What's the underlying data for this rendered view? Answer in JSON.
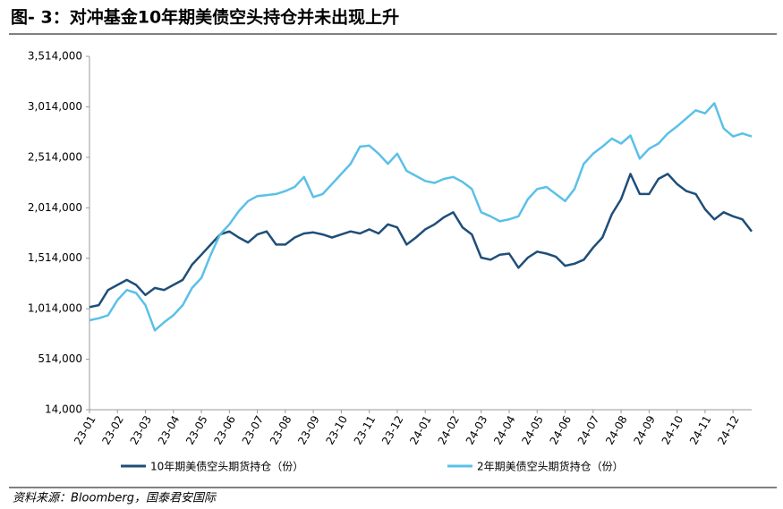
{
  "chart_data": {
    "type": "line",
    "title": "图- 3：对冲基金10年期美债空头持仓并未出现上升",
    "source": "资料来源：Bloomberg，国泰君安国际",
    "categories": [
      "23-01",
      null,
      null,
      "23-02",
      null,
      null,
      "23-03",
      null,
      null,
      "23-04",
      null,
      null,
      "23-05",
      null,
      null,
      "23-06",
      null,
      null,
      "23-07",
      null,
      null,
      "23-08",
      null,
      null,
      "23-09",
      null,
      null,
      "23-10",
      null,
      null,
      "23-11",
      null,
      null,
      "23-12",
      null,
      null,
      "24-01",
      null,
      null,
      "24-02",
      null,
      null,
      "24-03",
      null,
      null,
      "24-04",
      null,
      null,
      "24-05",
      null,
      null,
      "24-06",
      null,
      null,
      "24-07",
      null,
      null,
      "24-08",
      null,
      null,
      "24-09",
      null,
      null,
      "24-10",
      null,
      null,
      "24-11",
      null,
      null,
      "24-12",
      null,
      null
    ],
    "series": [
      {
        "name": "10年期美债空头期货持仓（份）",
        "color": "#1f4e79",
        "values": [
          1030000,
          1050000,
          1200000,
          1250000,
          1300000,
          1250000,
          1150000,
          1220000,
          1200000,
          1250000,
          1300000,
          1450000,
          1550000,
          1650000,
          1750000,
          1780000,
          1720000,
          1670000,
          1750000,
          1780000,
          1650000,
          1650000,
          1720000,
          1760000,
          1770000,
          1750000,
          1720000,
          1750000,
          1780000,
          1760000,
          1800000,
          1760000,
          1850000,
          1820000,
          1650000,
          1720000,
          1800000,
          1850000,
          1920000,
          1970000,
          1820000,
          1750000,
          1520000,
          1500000,
          1550000,
          1560000,
          1420000,
          1520000,
          1580000,
          1560000,
          1530000,
          1440000,
          1460000,
          1500000,
          1620000,
          1720000,
          1950000,
          2100000,
          2350000,
          2150000,
          2150000,
          2300000,
          2350000,
          2250000,
          2180000,
          2150000,
          2000000,
          1900000,
          1970000,
          1930000,
          1900000,
          1780000
        ]
      },
      {
        "name": "2年期美债空头期货持仓（份）",
        "color": "#5bc0e8",
        "values": [
          900000,
          920000,
          950000,
          1100000,
          1200000,
          1170000,
          1050000,
          800000,
          880000,
          950000,
          1050000,
          1220000,
          1320000,
          1550000,
          1750000,
          1850000,
          1980000,
          2080000,
          2130000,
          2140000,
          2150000,
          2180000,
          2220000,
          2320000,
          2120000,
          2150000,
          2250000,
          2350000,
          2450000,
          2620000,
          2630000,
          2550000,
          2450000,
          2550000,
          2380000,
          2330000,
          2280000,
          2260000,
          2300000,
          2320000,
          2270000,
          2200000,
          1970000,
          1930000,
          1880000,
          1900000,
          1930000,
          2100000,
          2200000,
          2220000,
          2150000,
          2080000,
          2200000,
          2450000,
          2550000,
          2620000,
          2700000,
          2650000,
          2730000,
          2500000,
          2600000,
          2650000,
          2750000,
          2820000,
          2900000,
          2980000,
          2950000,
          3050000,
          2800000,
          2720000,
          2750000,
          2720000
        ]
      }
    ],
    "ylim": [
      14000,
      3514000
    ],
    "yticks": [
      {
        "value": 14000,
        "label": "14,000"
      },
      {
        "value": 514000,
        "label": "514,000"
      },
      {
        "value": 1014000,
        "label": "1,014,000"
      },
      {
        "value": 1514000,
        "label": "1,514,000"
      },
      {
        "value": 2014000,
        "label": "2,014,000"
      },
      {
        "value": 2514000,
        "label": "2,514,000"
      },
      {
        "value": 3014000,
        "label": "3,014,000"
      },
      {
        "value": 3514000,
        "label": "3,514,000"
      }
    ],
    "grid": false
  }
}
